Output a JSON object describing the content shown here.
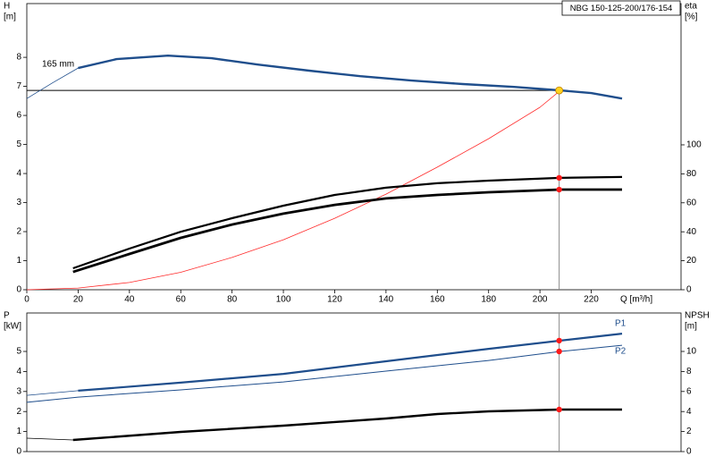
{
  "chart_data": [
    {
      "type": "line",
      "title": "NBG 150-125-200/176-154",
      "ylabel": [
        "H",
        "[m]"
      ],
      "y2label": [
        "eta",
        "[%]"
      ],
      "xlabel": "Q [m³/h]",
      "annotation": "165 mm",
      "xlim": [
        0,
        255
      ],
      "xticks": [
        0,
        20,
        40,
        60,
        80,
        100,
        120,
        140,
        160,
        180,
        200,
        220
      ],
      "ylim": [
        0,
        9.85
      ],
      "yticks": [
        0,
        1,
        2,
        3,
        4,
        5,
        6,
        7,
        8
      ],
      "y2lim": [
        0,
        197.5
      ],
      "y2ticks": [
        0,
        20,
        40,
        60,
        80,
        100
      ],
      "series": [
        {
          "color": "#1f4e8c",
          "width": 0.8,
          "axis": "y",
          "x": [
            0,
            10,
            20
          ],
          "values": [
            6.58,
            7.12,
            7.63
          ]
        },
        {
          "color": "#1f4e8c",
          "width": 2.4,
          "axis": "y",
          "x": [
            20,
            35,
            55,
            72,
            90,
            110,
            130,
            150,
            170,
            190,
            208,
            220,
            232
          ],
          "values": [
            7.63,
            7.94,
            8.06,
            7.97,
            7.75,
            7.54,
            7.35,
            7.2,
            7.08,
            6.98,
            6.86,
            6.77,
            6.58
          ]
        },
        {
          "color": "#ff2a2a",
          "width": 0.8,
          "axis": "y",
          "x": [
            0,
            20,
            40,
            60,
            80,
            100,
            120,
            140,
            160,
            180,
            200,
            208
          ],
          "values": [
            0,
            0.06,
            0.25,
            0.6,
            1.11,
            1.72,
            2.46,
            3.29,
            4.22,
            5.2,
            6.28,
            6.86
          ]
        },
        {
          "color": "#000000",
          "width": 2.2,
          "axis": "y2",
          "x": [
            18,
            40,
            60,
            80,
            100,
            120,
            140,
            160,
            180,
            208,
            232
          ],
          "values": [
            14.8,
            28.4,
            40,
            49.4,
            58,
            65.4,
            70.4,
            73.5,
            75.3,
            77.2,
            77.8
          ]
        },
        {
          "color": "#000000",
          "width": 2.8,
          "axis": "y2",
          "x": [
            18,
            40,
            60,
            80,
            100,
            120,
            140,
            160,
            180,
            208,
            232
          ],
          "values": [
            12.3,
            24.7,
            35.8,
            45,
            52.5,
            58.6,
            63,
            65.4,
            67.3,
            69.1,
            69.1
          ]
        }
      ],
      "markers": [
        {
          "x": 207.5,
          "value": 6.86,
          "axis": "y",
          "color": "#ffd21f"
        },
        {
          "x": 207.5,
          "value": 77.2,
          "axis": "y2",
          "color": "#ff1a1a"
        },
        {
          "x": 207.5,
          "value": 69.1,
          "axis": "y2",
          "color": "#ff1a1a"
        }
      ]
    },
    {
      "type": "line",
      "ylabel": [
        "P",
        "[kW]"
      ],
      "y2label": [
        "NPSH",
        "[m]"
      ],
      "xlim": [
        0,
        255
      ],
      "ylim": [
        0,
        6.92
      ],
      "yticks": [
        0,
        1,
        2,
        3,
        4,
        5
      ],
      "y2lim": [
        0,
        13.84
      ],
      "y2ticks": [
        0,
        2,
        4,
        6,
        8,
        10
      ],
      "series": [
        {
          "color": "#1f4e8c",
          "width": 0.8,
          "axis": "y",
          "x": [
            0,
            20
          ],
          "values": [
            2.81,
            3.04
          ]
        },
        {
          "name": "P1",
          "color": "#1f4e8c",
          "width": 2.2,
          "axis": "y",
          "x": [
            20,
            60,
            100,
            140,
            180,
            208,
            232
          ],
          "values": [
            3.04,
            3.44,
            3.88,
            4.51,
            5.13,
            5.54,
            5.89
          ]
        },
        {
          "name": "P2",
          "color": "#1f4e8c",
          "width": 1,
          "axis": "y",
          "x": [
            0,
            20,
            60,
            100,
            140,
            180,
            208,
            232
          ],
          "values": [
            2.46,
            2.72,
            3.08,
            3.48,
            4.02,
            4.55,
            5.0,
            5.31
          ]
        },
        {
          "color": "#000000",
          "width": 0.8,
          "axis": "y2",
          "x": [
            0,
            18
          ],
          "values": [
            1.34,
            1.16
          ]
        },
        {
          "color": "#000000",
          "width": 2.4,
          "axis": "y2",
          "x": [
            18,
            60,
            100,
            140,
            160,
            180,
            208,
            232
          ],
          "values": [
            1.16,
            1.96,
            2.59,
            3.3,
            3.75,
            4.02,
            4.2,
            4.2
          ]
        }
      ],
      "markers": [
        {
          "x": 207.5,
          "value": 5.54,
          "axis": "y",
          "color": "#ff1a1a"
        },
        {
          "x": 207.5,
          "value": 5.0,
          "axis": "y",
          "color": "#ff1a1a"
        },
        {
          "x": 207.5,
          "value": 4.2,
          "axis": "y2",
          "color": "#ff1a1a"
        }
      ]
    }
  ]
}
